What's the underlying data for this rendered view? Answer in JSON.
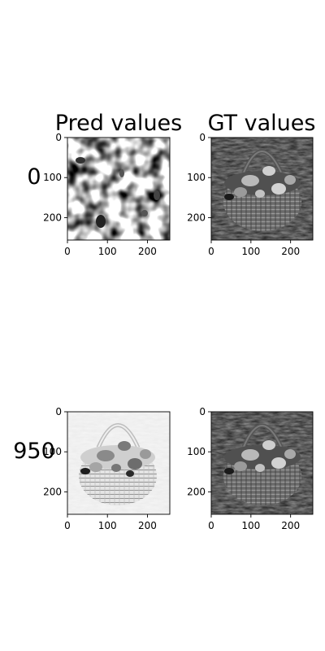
{
  "chart_data": {
    "type": "image-grid",
    "column_titles": [
      "Pred values",
      "GT values"
    ],
    "row_labels": [
      "0",
      "950"
    ],
    "colormap": "gray",
    "panels": [
      {
        "row": "0",
        "column": "Pred values",
        "image": "noise blobs",
        "x_ticks": [
          "0",
          "100",
          "200"
        ],
        "y_ticks": [
          "0",
          "100",
          "200"
        ],
        "xlim": [
          0,
          256
        ],
        "ylim": [
          256,
          0
        ]
      },
      {
        "row": "0",
        "column": "GT values",
        "image": "basket of mushrooms on grass",
        "x_ticks": [
          "0",
          "100",
          "200"
        ],
        "y_ticks": [
          "0",
          "100",
          "200"
        ],
        "xlim": [
          0,
          256
        ],
        "ylim": [
          256,
          0
        ]
      },
      {
        "row": "950",
        "column": "Pred values",
        "image": "reconstructed basket of mushrooms (light)",
        "x_ticks": [
          "0",
          "100",
          "200"
        ],
        "y_ticks": [
          "0",
          "100",
          "200"
        ],
        "xlim": [
          0,
          256
        ],
        "ylim": [
          256,
          0
        ]
      },
      {
        "row": "950",
        "column": "GT values",
        "image": "basket of mushrooms on grass",
        "x_ticks": [
          "0",
          "100",
          "200"
        ],
        "y_ticks": [
          "0",
          "100",
          "200"
        ],
        "xlim": [
          0,
          256
        ],
        "ylim": [
          256,
          0
        ]
      }
    ]
  }
}
